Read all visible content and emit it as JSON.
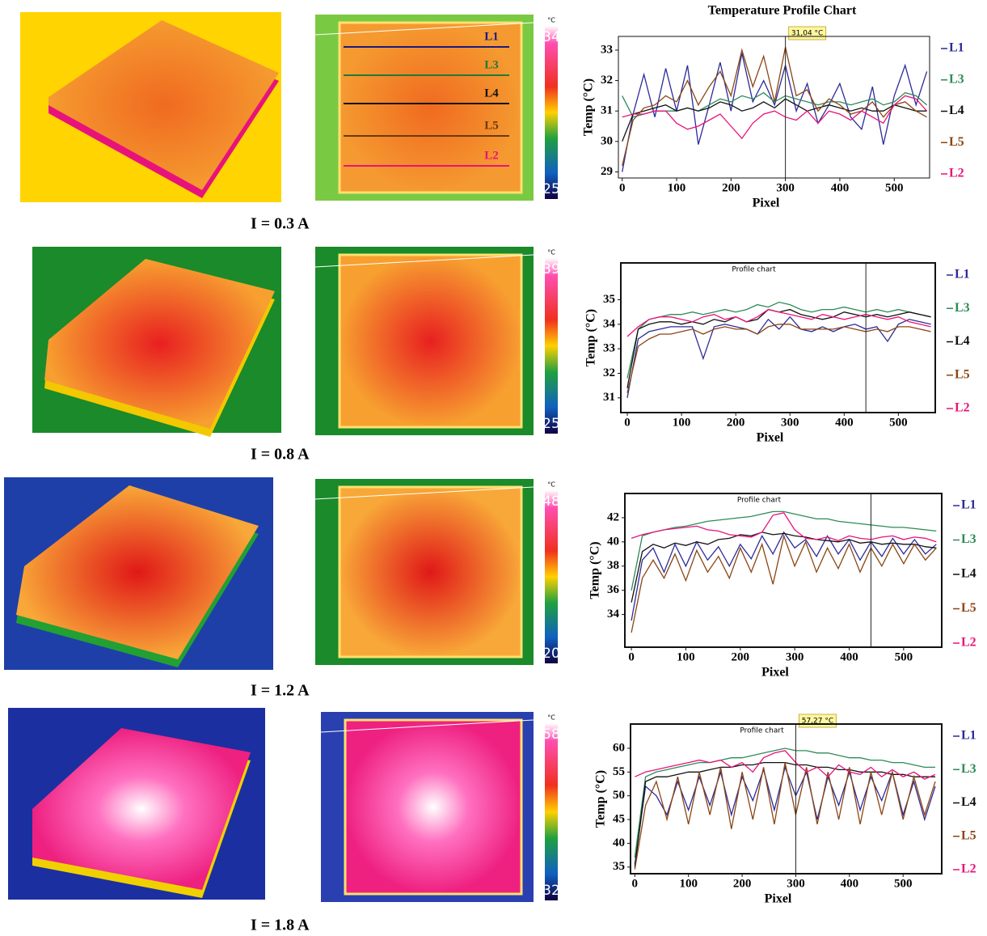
{
  "chart_data": [
    {
      "type": "line",
      "title": "Temperature Profile Chart",
      "xlabel": "Pixel",
      "ylabel": "Temp (°C)",
      "x": [
        0,
        20,
        40,
        60,
        80,
        100,
        120,
        140,
        160,
        180,
        200,
        220,
        240,
        260,
        280,
        300,
        320,
        340,
        360,
        380,
        400,
        420,
        440,
        460,
        480,
        500,
        520,
        540,
        560
      ],
      "xlim": [
        -7,
        565
      ],
      "ylim": [
        28.8,
        33.45
      ],
      "xticks": [
        0,
        100,
        200,
        300,
        400,
        500
      ],
      "yticks": [
        29,
        30,
        31,
        32,
        33
      ],
      "cursor_x": 300,
      "cursor_label": "31,04 °C",
      "series": [
        {
          "name": "L1",
          "color": "#2b2b9a",
          "values": [
            29.0,
            30.9,
            32.2,
            30.8,
            32.4,
            31.0,
            32.5,
            29.9,
            31.2,
            32.6,
            31.0,
            32.9,
            31.3,
            32.0,
            31.2,
            32.5,
            31.0,
            31.9,
            30.6,
            31.2,
            31.9,
            30.8,
            30.4,
            31.8,
            29.9,
            31.5,
            32.5,
            31.2,
            32.3
          ]
        },
        {
          "name": "L3",
          "color": "#2e8b57",
          "values": [
            31.5,
            30.8,
            30.9,
            31.0,
            31.0,
            31.0,
            31.1,
            31.0,
            31.2,
            31.4,
            31.3,
            31.5,
            31.4,
            31.6,
            31.3,
            31.5,
            31.4,
            31.3,
            31.2,
            31.3,
            31.3,
            31.2,
            31.3,
            31.4,
            31.2,
            31.3,
            31.6,
            31.5,
            31.2
          ]
        },
        {
          "name": "L4",
          "color": "#111111",
          "values": [
            30.0,
            30.9,
            31.0,
            31.1,
            31.2,
            31.0,
            31.1,
            31.0,
            31.1,
            31.3,
            31.2,
            31.0,
            31.1,
            31.3,
            31.1,
            31.4,
            31.2,
            31.0,
            31.1,
            31.2,
            31.1,
            31.0,
            31.1,
            31.0,
            31.0,
            31.2,
            31.1,
            31.0,
            31.0
          ]
        },
        {
          "name": "L5",
          "color": "#8b4513",
          "values": [
            29.2,
            30.7,
            31.1,
            31.2,
            31.5,
            31.3,
            32.0,
            31.2,
            31.8,
            32.3,
            31.5,
            33.0,
            31.8,
            32.8,
            31.3,
            33.1,
            31.5,
            31.7,
            31.0,
            31.4,
            31.2,
            30.9,
            31.0,
            31.3,
            30.8,
            31.2,
            31.3,
            31.0,
            30.8
          ]
        },
        {
          "name": "L2",
          "color": "#e8137a",
          "values": [
            30.8,
            30.9,
            30.9,
            31.0,
            31.0,
            30.6,
            30.4,
            30.5,
            30.7,
            30.9,
            30.5,
            30.1,
            30.6,
            30.9,
            31.0,
            30.8,
            30.7,
            31.0,
            30.6,
            31.0,
            30.9,
            30.7,
            31.0,
            30.8,
            30.6,
            31.2,
            31.5,
            31.4,
            31.0
          ]
        }
      ]
    },
    {
      "type": "line",
      "title": "Profile chart",
      "xlabel": "Pixel",
      "ylabel": "Temp (°C)",
      "x": [
        0,
        20,
        40,
        60,
        80,
        100,
        120,
        140,
        160,
        180,
        200,
        220,
        240,
        260,
        280,
        300,
        320,
        340,
        360,
        380,
        400,
        420,
        440,
        460,
        480,
        500,
        520,
        540,
        560
      ],
      "xlim": [
        -12,
        568
      ],
      "ylim": [
        30.4,
        36.5
      ],
      "xticks": [
        0,
        100,
        200,
        300,
        400,
        500
      ],
      "yticks": [
        31,
        32,
        33,
        34,
        35
      ],
      "cursor_x": 440,
      "series": [
        {
          "name": "L1",
          "color": "#2b2b9a",
          "values": [
            31.0,
            33.4,
            33.7,
            33.8,
            33.9,
            33.9,
            33.9,
            32.6,
            33.9,
            34.0,
            33.9,
            33.8,
            33.6,
            34.2,
            33.8,
            34.3,
            33.8,
            33.7,
            33.9,
            33.7,
            33.9,
            34.0,
            33.8,
            33.9,
            33.3,
            34.0,
            34.2,
            34.1,
            34.0
          ]
        },
        {
          "name": "L3",
          "color": "#2e8b57",
          "values": [
            31.8,
            33.8,
            34.2,
            34.3,
            34.4,
            34.4,
            34.5,
            34.4,
            34.5,
            34.6,
            34.5,
            34.6,
            34.8,
            34.7,
            34.9,
            34.8,
            34.6,
            34.5,
            34.6,
            34.6,
            34.7,
            34.6,
            34.5,
            34.6,
            34.5,
            34.6,
            34.5,
            34.4,
            34.3
          ]
        },
        {
          "name": "L4",
          "color": "#111111",
          "values": [
            31.4,
            33.8,
            34.0,
            34.1,
            34.1,
            34.0,
            34.1,
            34.0,
            34.2,
            34.1,
            34.3,
            34.1,
            34.2,
            34.6,
            34.5,
            34.6,
            34.4,
            34.3,
            34.2,
            34.3,
            34.5,
            34.4,
            34.3,
            34.4,
            34.3,
            34.4,
            34.5,
            34.4,
            34.3
          ]
        },
        {
          "name": "L5",
          "color": "#8b4513",
          "values": [
            31.2,
            33.1,
            33.4,
            33.6,
            33.6,
            33.7,
            33.8,
            33.6,
            33.8,
            33.9,
            33.8,
            33.8,
            33.6,
            33.9,
            34.0,
            34.0,
            33.8,
            33.8,
            33.8,
            33.8,
            33.9,
            33.8,
            33.7,
            33.8,
            33.7,
            33.9,
            33.9,
            33.8,
            33.7
          ]
        },
        {
          "name": "L2",
          "color": "#e8137a",
          "values": [
            33.5,
            33.9,
            34.2,
            34.3,
            34.3,
            34.2,
            34.1,
            34.3,
            34.4,
            34.2,
            34.3,
            34.1,
            34.3,
            34.6,
            34.5,
            34.4,
            34.3,
            34.2,
            34.4,
            34.3,
            34.2,
            34.3,
            34.4,
            34.3,
            34.2,
            34.3,
            34.1,
            34.0,
            33.9
          ]
        }
      ]
    },
    {
      "type": "line",
      "title": "Profile chart",
      "xlabel": "Pixel",
      "ylabel": "Temp (°C)",
      "x": [
        0,
        20,
        40,
        60,
        80,
        100,
        120,
        140,
        160,
        180,
        200,
        220,
        240,
        260,
        280,
        300,
        320,
        340,
        360,
        380,
        400,
        420,
        440,
        460,
        480,
        500,
        520,
        540,
        560
      ],
      "xlim": [
        -12,
        570
      ],
      "ylim": [
        31.3,
        44
      ],
      "xticks": [
        0,
        100,
        200,
        300,
        400,
        500
      ],
      "yticks": [
        34,
        36,
        38,
        40,
        42
      ],
      "cursor_x": 440,
      "series": [
        {
          "name": "L1",
          "color": "#2b2b9a",
          "values": [
            33.5,
            38.5,
            39.5,
            37.5,
            39.8,
            38.0,
            40.0,
            38.5,
            39.6,
            38.0,
            39.8,
            38.6,
            40.5,
            39.0,
            40.8,
            39.5,
            40.2,
            38.8,
            40.5,
            39.0,
            40.2,
            38.5,
            40.0,
            38.8,
            40.3,
            39.0,
            40.2,
            39.0,
            39.8
          ]
        },
        {
          "name": "L3",
          "color": "#2e8b57",
          "values": [
            36.0,
            40.5,
            40.8,
            41.0,
            41.2,
            41.3,
            41.5,
            41.7,
            41.8,
            41.9,
            42.0,
            42.1,
            42.3,
            42.5,
            42.5,
            42.3,
            42.1,
            41.9,
            41.9,
            41.7,
            41.6,
            41.5,
            41.4,
            41.3,
            41.2,
            41.2,
            41.1,
            41.0,
            40.9
          ]
        },
        {
          "name": "L4",
          "color": "#111111",
          "values": [
            35.0,
            39.2,
            39.8,
            39.5,
            39.9,
            39.7,
            40.0,
            39.8,
            40.2,
            40.3,
            40.6,
            40.5,
            40.8,
            40.6,
            40.7,
            40.5,
            40.4,
            40.2,
            40.1,
            40.0,
            40.2,
            39.9,
            40.0,
            39.8,
            39.9,
            39.8,
            39.8,
            39.6,
            39.5
          ]
        },
        {
          "name": "L5",
          "color": "#8b4513",
          "values": [
            32.5,
            37.0,
            38.5,
            37.0,
            39.0,
            36.8,
            39.3,
            37.5,
            38.8,
            37.0,
            39.5,
            37.5,
            39.8,
            36.5,
            40.5,
            38.0,
            40.0,
            37.5,
            39.5,
            37.8,
            39.8,
            37.5,
            39.5,
            38.0,
            39.8,
            38.2,
            39.8,
            38.5,
            39.5
          ]
        },
        {
          "name": "L2",
          "color": "#e8137a",
          "values": [
            40.3,
            40.6,
            40.8,
            41.0,
            41.1,
            41.2,
            41.3,
            41.0,
            40.9,
            40.6,
            40.5,
            40.4,
            40.8,
            42.2,
            42.4,
            41.0,
            40.3,
            40.2,
            40.4,
            40.1,
            40.5,
            40.3,
            40.2,
            40.4,
            40.5,
            40.2,
            40.4,
            40.3,
            40.0
          ]
        }
      ]
    },
    {
      "type": "line",
      "title": "Profile chart",
      "xlabel": "Pixel",
      "ylabel": "Temp (°C)",
      "x": [
        0,
        20,
        40,
        60,
        80,
        100,
        120,
        140,
        160,
        180,
        200,
        220,
        240,
        260,
        280,
        300,
        320,
        340,
        360,
        380,
        400,
        420,
        440,
        460,
        480,
        500,
        520,
        540,
        560
      ],
      "xlim": [
        -8,
        572
      ],
      "ylim": [
        33.6,
        65.1
      ],
      "xticks": [
        0,
        100,
        200,
        300,
        400,
        500
      ],
      "yticks": [
        35,
        40,
        45,
        50,
        55,
        60
      ],
      "cursor_x": 300,
      "cursor_label": "57,27 °C",
      "series": [
        {
          "name": "L1",
          "color": "#2b2b9a",
          "values": [
            35.5,
            52.0,
            50.0,
            46.0,
            53.0,
            47.0,
            54.0,
            48.0,
            55.0,
            46.0,
            54.0,
            49.0,
            55.5,
            47.0,
            56.0,
            50.0,
            55.0,
            45.0,
            54.0,
            48.0,
            55.0,
            47.0,
            54.0,
            49.0,
            55.0,
            46.0,
            53.0,
            45.0,
            52.0
          ]
        },
        {
          "name": "L3",
          "color": "#2e8b57",
          "values": [
            37.0,
            54.0,
            55.0,
            55.5,
            56.0,
            56.5,
            57.0,
            57.0,
            57.5,
            58.0,
            58.0,
            58.5,
            59.0,
            59.5,
            60.0,
            59.5,
            59.5,
            59.0,
            59.0,
            58.5,
            58.0,
            58.0,
            57.5,
            57.5,
            57.0,
            57.0,
            56.5,
            56.0,
            56.0
          ]
        },
        {
          "name": "L4",
          "color": "#111111",
          "values": [
            35.0,
            53.0,
            54.0,
            54.0,
            54.5,
            55.0,
            55.0,
            55.5,
            56.0,
            56.0,
            56.5,
            56.5,
            57.0,
            57.0,
            57.0,
            56.5,
            56.5,
            56.0,
            56.0,
            55.5,
            55.5,
            55.0,
            55.0,
            55.0,
            54.5,
            54.5,
            54.0,
            54.0,
            54.0
          ]
        },
        {
          "name": "L5",
          "color": "#8b4513",
          "values": [
            34.5,
            48.0,
            53.0,
            45.0,
            54.0,
            44.0,
            55.0,
            46.0,
            56.0,
            43.0,
            55.0,
            45.0,
            56.0,
            44.0,
            57.0,
            46.0,
            56.0,
            44.0,
            55.0,
            45.0,
            56.0,
            44.0,
            55.0,
            46.0,
            55.0,
            45.0,
            54.0,
            46.0,
            53.0
          ]
        },
        {
          "name": "L2",
          "color": "#e8137a",
          "values": [
            54.0,
            55.0,
            55.5,
            56.0,
            56.5,
            57.0,
            57.5,
            57.0,
            57.5,
            56.0,
            57.0,
            55.0,
            58.0,
            59.0,
            59.5,
            57.0,
            55.0,
            56.0,
            54.0,
            56.5,
            55.0,
            54.5,
            56.0,
            54.0,
            55.5,
            54.0,
            55.0,
            53.5,
            54.5
          ]
        }
      ]
    }
  ],
  "panels": [
    {
      "current": "I = 0.3 A",
      "colorbar": {
        "unit": "°C",
        "max": 34,
        "min": 25
      },
      "line_labels": [
        "L1",
        "L3",
        "L4",
        "L5",
        "L2"
      ]
    },
    {
      "current": "I = 0.8 A",
      "colorbar": {
        "unit": "°C",
        "max": 39,
        "min": 25
      }
    },
    {
      "current": "I = 1.2 A",
      "colorbar": {
        "unit": "°C",
        "max": 48,
        "min": 20
      }
    },
    {
      "current": "I = 1.8 A",
      "colorbar": {
        "unit": "°C",
        "max": 58,
        "min": 32
      }
    }
  ]
}
